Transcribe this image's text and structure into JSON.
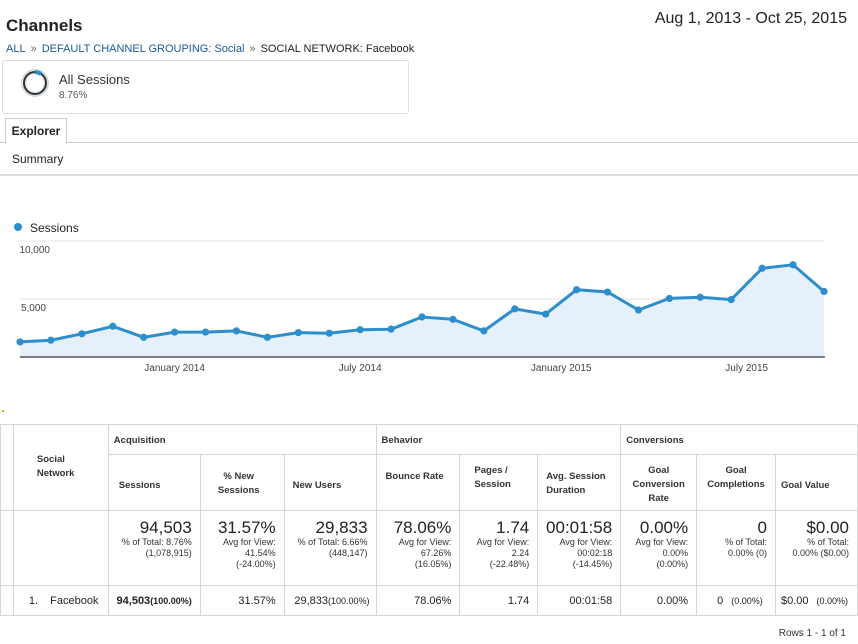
{
  "header": {
    "title": "Channels",
    "date_range": "Aug 1, 2013 - Oct 25, 2015"
  },
  "breadcrumbs": {
    "all": "ALL",
    "sep1": "»",
    "grouping": "DEFAULT CHANNEL GROUPING: Social",
    "sep2": "»",
    "current": "SOCIAL NETWORK: Facebook"
  },
  "segment": {
    "label": "All Sessions",
    "percent": "8.76%"
  },
  "tabs": {
    "explorer": "Explorer"
  },
  "subtab": {
    "summary": "Summary"
  },
  "chart_data": {
    "type": "area",
    "series": [
      {
        "name": "Sessions",
        "color": "#2c8fcc",
        "values": [
          1300,
          1450,
          2000,
          2650,
          1700,
          2150,
          2150,
          2250,
          1700,
          2100,
          2050,
          2350,
          2400,
          3450,
          3250,
          2250,
          4150,
          3700,
          5800,
          5600,
          4050,
          5050,
          5150,
          4950,
          7650,
          7950,
          5650
        ]
      }
    ],
    "ylim": [
      0,
      10000
    ],
    "yticks": [
      "10,000",
      "5,000"
    ],
    "xticks": [
      {
        "label": "January 2014",
        "index": 5
      },
      {
        "label": "July 2014",
        "index": 11
      },
      {
        "label": "January 2015",
        "index": 17.5
      },
      {
        "label": "July 2015",
        "index": 23.5
      }
    ],
    "grid": true,
    "legend": "top-left"
  },
  "table": {
    "groups": {
      "acquisition": "Acquisition",
      "behavior": "Behavior",
      "conversions": "Conversions"
    },
    "dimension_header": "Social Network",
    "columns": {
      "sessions": "Sessions",
      "new_sessions": "% New Sessions",
      "new_users": "New Users",
      "bounce_rate": "Bounce Rate",
      "pages_session": "Pages / Session",
      "avg_duration": "Avg. Session Duration",
      "goal_conv_rate": "Goal Conversion Rate",
      "goal_completions": "Goal Completions",
      "goal_value": "Goal Value"
    },
    "totals": {
      "sessions": "94,503",
      "sessions_sub1": "% of Total: 8.76%",
      "sessions_sub2": "(1,078,915)",
      "new_sessions": "31.57%",
      "new_sessions_sub1": "Avg for View:",
      "new_sessions_sub2": "41.54%",
      "new_sessions_sub3": "(-24.00%)",
      "new_users": "29,833",
      "new_users_sub1": "% of Total: 6.66%",
      "new_users_sub2": "(448,147)",
      "bounce_rate": "78.06%",
      "bounce_sub1": "Avg for View:",
      "bounce_sub2": "67.26%",
      "bounce_sub3": "(16.05%)",
      "pages": "1.74",
      "pages_sub1": "Avg for View:",
      "pages_sub2": "2.24",
      "pages_sub3": "(-22.48%)",
      "duration": "00:01:58",
      "duration_sub1": "Avg for View:",
      "duration_sub2": "00:02:18",
      "duration_sub3": "(-14.45%)",
      "goal_rate": "0.00%",
      "goal_rate_sub1": "Avg for View:",
      "goal_rate_sub2": "0.00%",
      "goal_rate_sub3": "(0.00%)",
      "goal_comp": "0",
      "goal_comp_sub1": "% of Total:",
      "goal_comp_sub2": "0.00% (0)",
      "goal_value": "$0.00",
      "goal_value_sub1": "% of Total:",
      "goal_value_sub2": "0.00% ($0.00)"
    },
    "rows": [
      {
        "index": "1.",
        "name": "Facebook",
        "sessions": "94,503",
        "sessions_pct": "(100.00%)",
        "new_sessions": "31.57%",
        "new_users": "29,833",
        "new_users_pct": "(100.00%)",
        "bounce_rate": "78.06%",
        "pages": "1.74",
        "duration": "00:01:58",
        "goal_rate": "0.00%",
        "goal_comp": "0",
        "goal_comp_pct": "(0.00%)",
        "goal_value": "$0.00",
        "goal_value_pct": "(0.00%)"
      }
    ]
  },
  "footer": {
    "rows_info": "Rows 1 - 1 of 1"
  }
}
